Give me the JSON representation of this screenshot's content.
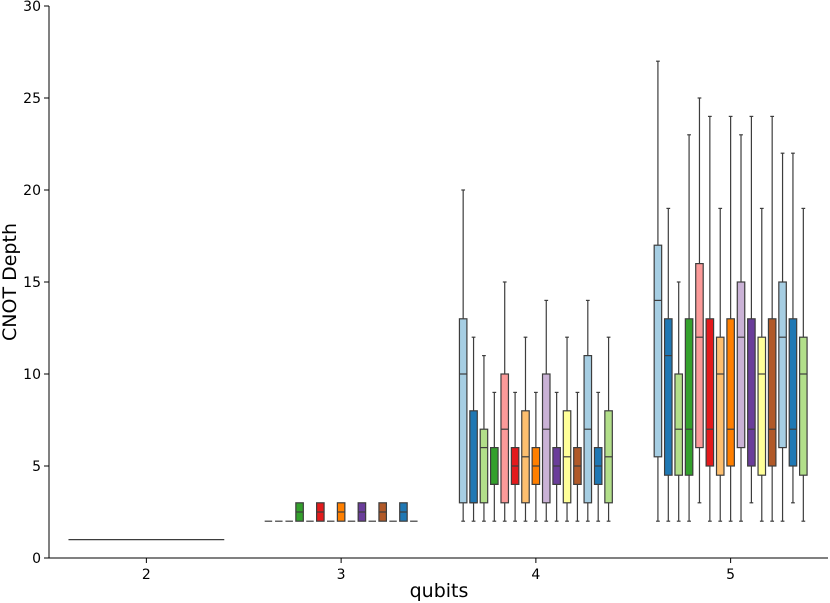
{
  "chart_data": {
    "type": "box",
    "title": "",
    "xlabel": "qubits",
    "ylabel": "CNOT Depth",
    "ylim": [
      0,
      30
    ],
    "yticks": [
      0,
      5,
      10,
      15,
      20,
      25,
      30
    ],
    "categories": [
      "2",
      "3",
      "4",
      "5"
    ],
    "grid": false,
    "legend": "none",
    "palette": [
      "#a6cee3",
      "#1f78b4",
      "#b2df8a",
      "#33a02c",
      "#fb9a99",
      "#e31a1c",
      "#fdbf6f",
      "#ff7f00",
      "#cab2d6",
      "#6a3d9a",
      "#ffff99",
      "#b15928"
    ],
    "groups": [
      {
        "category": "2",
        "boxes": [
          {
            "color_index": 0,
            "whislo": 1,
            "q1": 1,
            "med": 1,
            "q3": 1,
            "whishi": 1
          }
        ]
      },
      {
        "category": "3",
        "boxes": [
          {
            "color_index": 0,
            "whislo": 2,
            "q1": 2,
            "med": 2,
            "q3": 2,
            "whishi": 2
          },
          {
            "color_index": 1,
            "whislo": 2,
            "q1": 2,
            "med": 2,
            "q3": 2,
            "whishi": 2
          },
          {
            "color_index": 2,
            "whislo": 2,
            "q1": 2,
            "med": 2,
            "q3": 2,
            "whishi": 2
          },
          {
            "color_index": 3,
            "whislo": 2,
            "q1": 2,
            "med": 2.5,
            "q3": 3,
            "whishi": 3
          },
          {
            "color_index": 4,
            "whislo": 2,
            "q1": 2,
            "med": 2,
            "q3": 2,
            "whishi": 2
          },
          {
            "color_index": 5,
            "whislo": 2,
            "q1": 2,
            "med": 2.5,
            "q3": 3,
            "whishi": 3
          },
          {
            "color_index": 6,
            "whislo": 2,
            "q1": 2,
            "med": 2,
            "q3": 2,
            "whishi": 2
          },
          {
            "color_index": 7,
            "whislo": 2,
            "q1": 2,
            "med": 2.5,
            "q3": 3,
            "whishi": 3
          },
          {
            "color_index": 8,
            "whislo": 2,
            "q1": 2,
            "med": 2,
            "q3": 2,
            "whishi": 2
          },
          {
            "color_index": 9,
            "whislo": 2,
            "q1": 2,
            "med": 2.5,
            "q3": 3,
            "whishi": 3
          },
          {
            "color_index": 10,
            "whislo": 2,
            "q1": 2,
            "med": 2,
            "q3": 2,
            "whishi": 2
          },
          {
            "color_index": 11,
            "whislo": 2,
            "q1": 2,
            "med": 2.5,
            "q3": 3,
            "whishi": 3
          },
          {
            "color_index": 0,
            "whislo": 2,
            "q1": 2,
            "med": 2,
            "q3": 2,
            "whishi": 2
          },
          {
            "color_index": 1,
            "whislo": 2,
            "q1": 2,
            "med": 2.5,
            "q3": 3,
            "whishi": 3
          },
          {
            "color_index": 2,
            "whislo": 2,
            "q1": 2,
            "med": 2,
            "q3": 2,
            "whishi": 2
          }
        ]
      },
      {
        "category": "4",
        "boxes": [
          {
            "color_index": 0,
            "whislo": 2,
            "q1": 3,
            "med": 10,
            "q3": 13,
            "whishi": 20
          },
          {
            "color_index": 1,
            "whislo": 2,
            "q1": 3,
            "med": 3,
            "q3": 8,
            "whishi": 12
          },
          {
            "color_index": 2,
            "whislo": 2,
            "q1": 3,
            "med": 6,
            "q3": 7,
            "whishi": 11
          },
          {
            "color_index": 3,
            "whislo": 2,
            "q1": 4,
            "med": 4,
            "q3": 6,
            "whishi": 9
          },
          {
            "color_index": 4,
            "whislo": 2,
            "q1": 3,
            "med": 7,
            "q3": 10,
            "whishi": 15
          },
          {
            "color_index": 5,
            "whislo": 2,
            "q1": 4,
            "med": 5,
            "q3": 6,
            "whishi": 9
          },
          {
            "color_index": 6,
            "whislo": 2,
            "q1": 3,
            "med": 5.5,
            "q3": 8,
            "whishi": 12
          },
          {
            "color_index": 7,
            "whislo": 2,
            "q1": 4,
            "med": 5,
            "q3": 6,
            "whishi": 9
          },
          {
            "color_index": 8,
            "whislo": 2,
            "q1": 3,
            "med": 7,
            "q3": 10,
            "whishi": 14
          },
          {
            "color_index": 9,
            "whislo": 2,
            "q1": 4,
            "med": 5,
            "q3": 6,
            "whishi": 9
          },
          {
            "color_index": 10,
            "whislo": 2,
            "q1": 3,
            "med": 5.5,
            "q3": 8,
            "whishi": 12
          },
          {
            "color_index": 11,
            "whislo": 2,
            "q1": 4,
            "med": 5,
            "q3": 6,
            "whishi": 9
          },
          {
            "color_index": 0,
            "whislo": 2,
            "q1": 3,
            "med": 7,
            "q3": 11,
            "whishi": 14
          },
          {
            "color_index": 1,
            "whislo": 2,
            "q1": 4,
            "med": 5,
            "q3": 6,
            "whishi": 9
          },
          {
            "color_index": 2,
            "whislo": 2,
            "q1": 3,
            "med": 5.5,
            "q3": 8,
            "whishi": 12
          }
        ]
      },
      {
        "category": "5",
        "boxes": [
          {
            "color_index": 0,
            "whislo": 2,
            "q1": 5.5,
            "med": 14,
            "q3": 17,
            "whishi": 27
          },
          {
            "color_index": 1,
            "whislo": 2,
            "q1": 4.5,
            "med": 11,
            "q3": 13,
            "whishi": 19
          },
          {
            "color_index": 2,
            "whislo": 2,
            "q1": 4.5,
            "med": 7,
            "q3": 10,
            "whishi": 15
          },
          {
            "color_index": 3,
            "whislo": 2,
            "q1": 4.5,
            "med": 7,
            "q3": 13,
            "whishi": 23
          },
          {
            "color_index": 4,
            "whislo": 3,
            "q1": 6,
            "med": 12,
            "q3": 16,
            "whishi": 25
          },
          {
            "color_index": 5,
            "whislo": 2,
            "q1": 5,
            "med": 7,
            "q3": 13,
            "whishi": 24
          },
          {
            "color_index": 6,
            "whislo": 2,
            "q1": 4.5,
            "med": 10,
            "q3": 12,
            "whishi": 19
          },
          {
            "color_index": 7,
            "whislo": 2,
            "q1": 5,
            "med": 7,
            "q3": 13,
            "whishi": 24
          },
          {
            "color_index": 8,
            "whislo": 2,
            "q1": 6,
            "med": 12,
            "q3": 15,
            "whishi": 23
          },
          {
            "color_index": 9,
            "whislo": 3,
            "q1": 5,
            "med": 7,
            "q3": 13,
            "whishi": 24
          },
          {
            "color_index": 10,
            "whislo": 2,
            "q1": 4.5,
            "med": 10,
            "q3": 12,
            "whishi": 19
          },
          {
            "color_index": 11,
            "whislo": 2,
            "q1": 5,
            "med": 7,
            "q3": 13,
            "whishi": 24
          },
          {
            "color_index": 0,
            "whislo": 2,
            "q1": 6,
            "med": 12,
            "q3": 15,
            "whishi": 22
          },
          {
            "color_index": 1,
            "whislo": 3,
            "q1": 5,
            "med": 7,
            "q3": 13,
            "whishi": 22
          },
          {
            "color_index": 2,
            "whislo": 2,
            "q1": 4.5,
            "med": 10,
            "q3": 12,
            "whishi": 19
          }
        ]
      }
    ]
  }
}
